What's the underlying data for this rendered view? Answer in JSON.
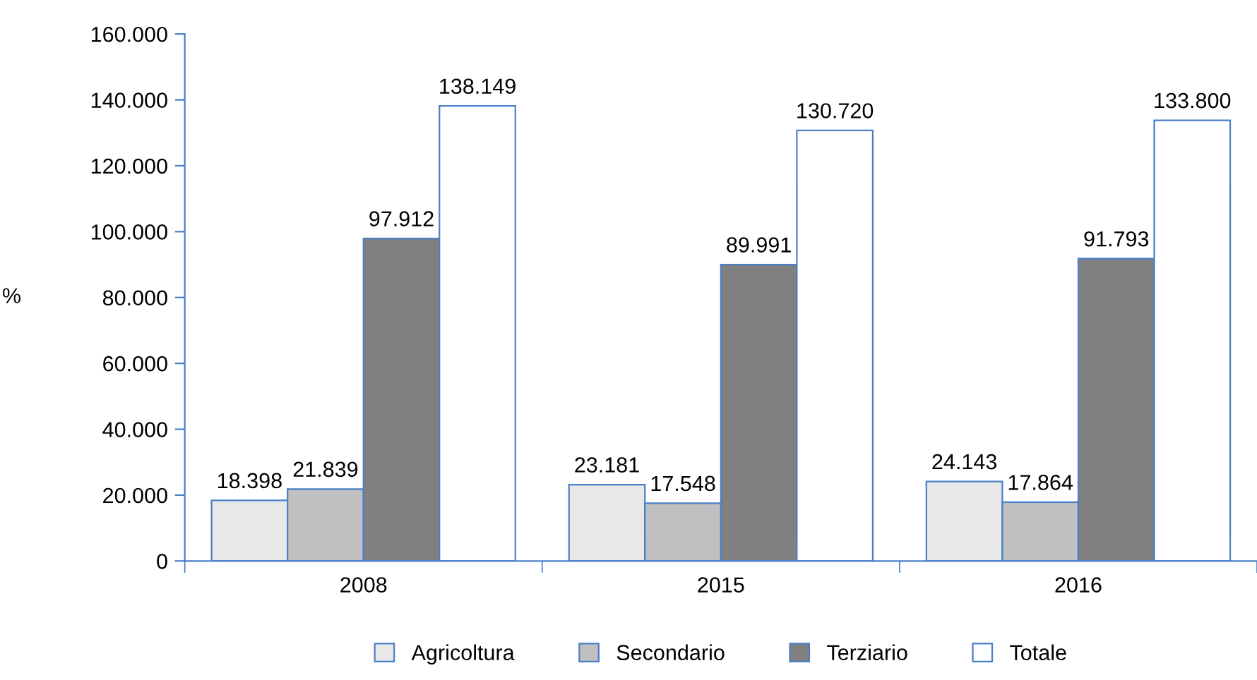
{
  "chart_data": {
    "type": "bar",
    "ylabel": "%",
    "categories": [
      "2008",
      "2015",
      "2016"
    ],
    "series": [
      {
        "name": "Agricoltura",
        "color": "#e8e8e8",
        "values": [
          18398,
          23181,
          24143
        ],
        "value_labels": [
          "18.398",
          "23.181",
          "24.143"
        ]
      },
      {
        "name": "Secondario",
        "color": "#c0c0c0",
        "values": [
          21839,
          17548,
          17864
        ],
        "value_labels": [
          "21.839",
          "17.548",
          "17.864"
        ]
      },
      {
        "name": "Terziario",
        "color": "#808080",
        "values": [
          97912,
          89991,
          91793
        ],
        "value_labels": [
          "97.912",
          "89.991",
          "91.793"
        ]
      },
      {
        "name": "Totale",
        "color": "#ffffff",
        "values": [
          138149,
          130720,
          133800
        ],
        "value_labels": [
          "138.149",
          "130.720",
          "133.800"
        ]
      }
    ],
    "ylim": [
      0,
      160000
    ],
    "yticks": [
      {
        "value": 0,
        "label": "0"
      },
      {
        "value": 20000,
        "label": "20.000"
      },
      {
        "value": 40000,
        "label": "40.000"
      },
      {
        "value": 60000,
        "label": "60.000"
      },
      {
        "value": 80000,
        "label": "80.000"
      },
      {
        "value": 100000,
        "label": "100.000"
      },
      {
        "value": 120000,
        "label": "120.000"
      },
      {
        "value": 140000,
        "label": "140.000"
      },
      {
        "value": 160000,
        "label": "160.000"
      }
    ],
    "grid": false,
    "legend": "bottom"
  }
}
